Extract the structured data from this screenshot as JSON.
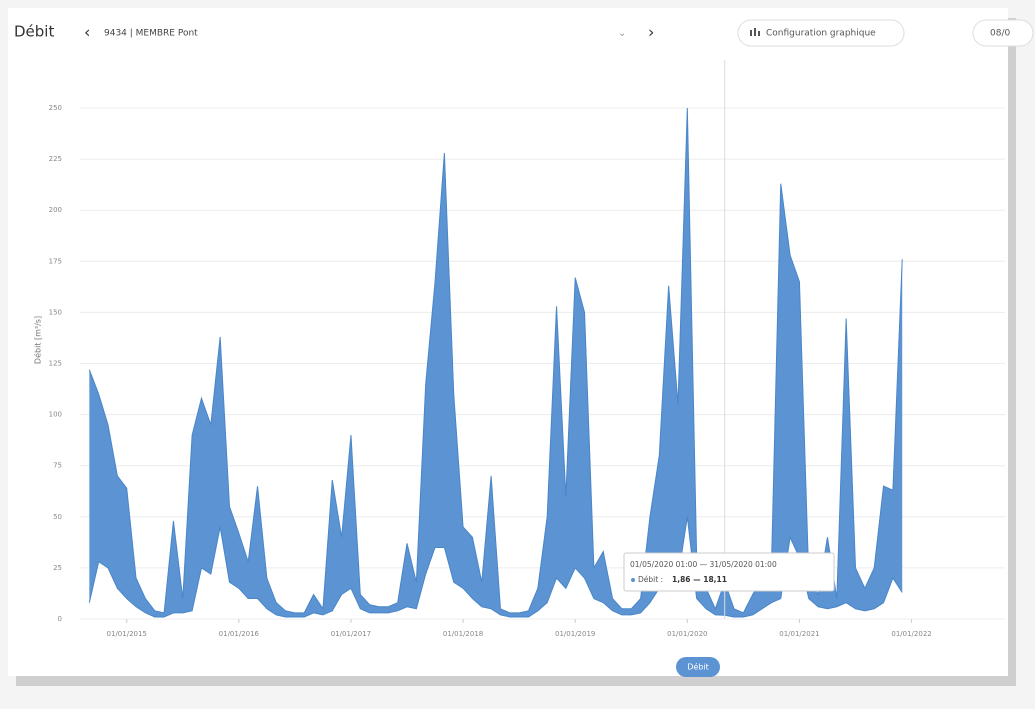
{
  "header": {
    "title": "Débit",
    "station": "9434 | MEMBRE Pont",
    "config_button": "Configuration graphique",
    "date_button": "08/0"
  },
  "tooltip": {
    "period": "01/05/2020 01:00 — 31/05/2020 01:00",
    "label": "Débit :",
    "value_text": "1,86 — 18,11"
  },
  "chart_data": {
    "type": "arearange",
    "y_label": "Débit [m³/s]",
    "grid": true,
    "x": [
      "01/09/2014",
      "01/10/2014",
      "01/11/2014",
      "01/12/2014",
      "01/01/2015",
      "01/02/2015",
      "01/03/2015",
      "01/04/2015",
      "01/05/2015",
      "01/06/2015",
      "01/07/2015",
      "01/08/2015",
      "01/09/2015",
      "01/10/2015",
      "01/11/2015",
      "01/12/2015",
      "01/01/2016",
      "01/02/2016",
      "01/03/2016",
      "01/04/2016",
      "01/05/2016",
      "01/06/2016",
      "01/07/2016",
      "01/08/2016",
      "01/09/2016",
      "01/10/2016",
      "01/11/2016",
      "01/12/2016",
      "01/01/2017",
      "01/02/2017",
      "01/03/2017",
      "01/04/2017",
      "01/05/2017",
      "01/06/2017",
      "01/07/2017",
      "01/08/2017",
      "01/09/2017",
      "01/10/2017",
      "01/11/2017",
      "01/12/2017",
      "01/01/2018",
      "01/02/2018",
      "01/03/2018",
      "01/04/2018",
      "01/05/2018",
      "01/06/2018",
      "01/07/2018",
      "01/08/2018",
      "01/09/2018",
      "01/10/2018",
      "01/11/2018",
      "01/12/2018",
      "01/01/2019",
      "01/02/2019",
      "01/03/2019",
      "01/04/2019",
      "01/05/2019",
      "01/06/2019",
      "01/07/2019",
      "01/08/2019",
      "01/09/2019",
      "01/10/2019",
      "01/11/2019",
      "01/12/2019",
      "01/01/2020",
      "01/02/2020",
      "01/03/2020",
      "01/04/2020",
      "01/05/2020",
      "01/06/2020",
      "01/07/2020",
      "01/08/2020",
      "01/09/2020",
      "01/10/2020",
      "01/11/2020",
      "01/12/2020",
      "01/01/2021",
      "01/02/2021",
      "01/03/2021",
      "01/04/2021",
      "01/05/2021",
      "01/06/2021",
      "01/07/2021",
      "01/08/2021",
      "01/09/2021",
      "01/10/2021",
      "01/11/2021",
      "01/12/2021"
    ],
    "series": [
      {
        "name": "Débit",
        "color": "#5b93d3",
        "high": [
          122,
          110,
          95,
          70,
          64,
          20,
          10,
          4,
          3,
          48,
          10,
          90,
          108,
          95,
          138,
          55,
          42,
          28,
          65,
          20,
          8,
          4,
          3,
          3,
          12,
          5,
          68,
          40,
          90,
          12,
          7,
          6,
          6,
          8,
          37,
          18,
          115,
          165,
          228,
          110,
          45,
          40,
          18,
          70,
          5,
          3,
          3,
          4,
          15,
          50,
          153,
          60,
          167,
          150,
          25,
          33,
          10,
          5,
          5,
          10,
          50,
          80,
          163,
          105,
          250,
          30,
          15,
          5,
          18.11,
          5,
          3,
          12,
          20,
          25,
          213,
          178,
          165,
          20,
          12,
          40,
          10,
          147,
          25,
          15,
          25,
          65,
          63,
          176
        ],
        "low": [
          8,
          28,
          25,
          15,
          10,
          6,
          3,
          1,
          1,
          3,
          3,
          4,
          25,
          22,
          45,
          18,
          15,
          10,
          10,
          5,
          2,
          1,
          1,
          1,
          3,
          2,
          4,
          12,
          15,
          5,
          3,
          3,
          3,
          4,
          6,
          5,
          22,
          35,
          35,
          18,
          15,
          10,
          6,
          5,
          2,
          1,
          1,
          1,
          4,
          8,
          20,
          15,
          25,
          20,
          10,
          8,
          4,
          2,
          2,
          3,
          8,
          15,
          30,
          20,
          50,
          10,
          5,
          2,
          1.86,
          1,
          1,
          2,
          5,
          8,
          10,
          40,
          30,
          10,
          6,
          5,
          6,
          8,
          5,
          4,
          5,
          8,
          20,
          13
        ]
      }
    ],
    "xlim": [
      "01/08/2014",
      "01/11/2022"
    ],
    "xticks": [
      "01/01/2015",
      "01/01/2016",
      "01/01/2017",
      "01/01/2018",
      "01/01/2019",
      "01/01/2020",
      "01/01/2021",
      "01/01/2022"
    ],
    "ylim": [
      0,
      250
    ],
    "yticks": [
      0,
      25,
      50,
      75,
      100,
      125,
      150,
      175,
      200,
      225,
      250
    ]
  }
}
